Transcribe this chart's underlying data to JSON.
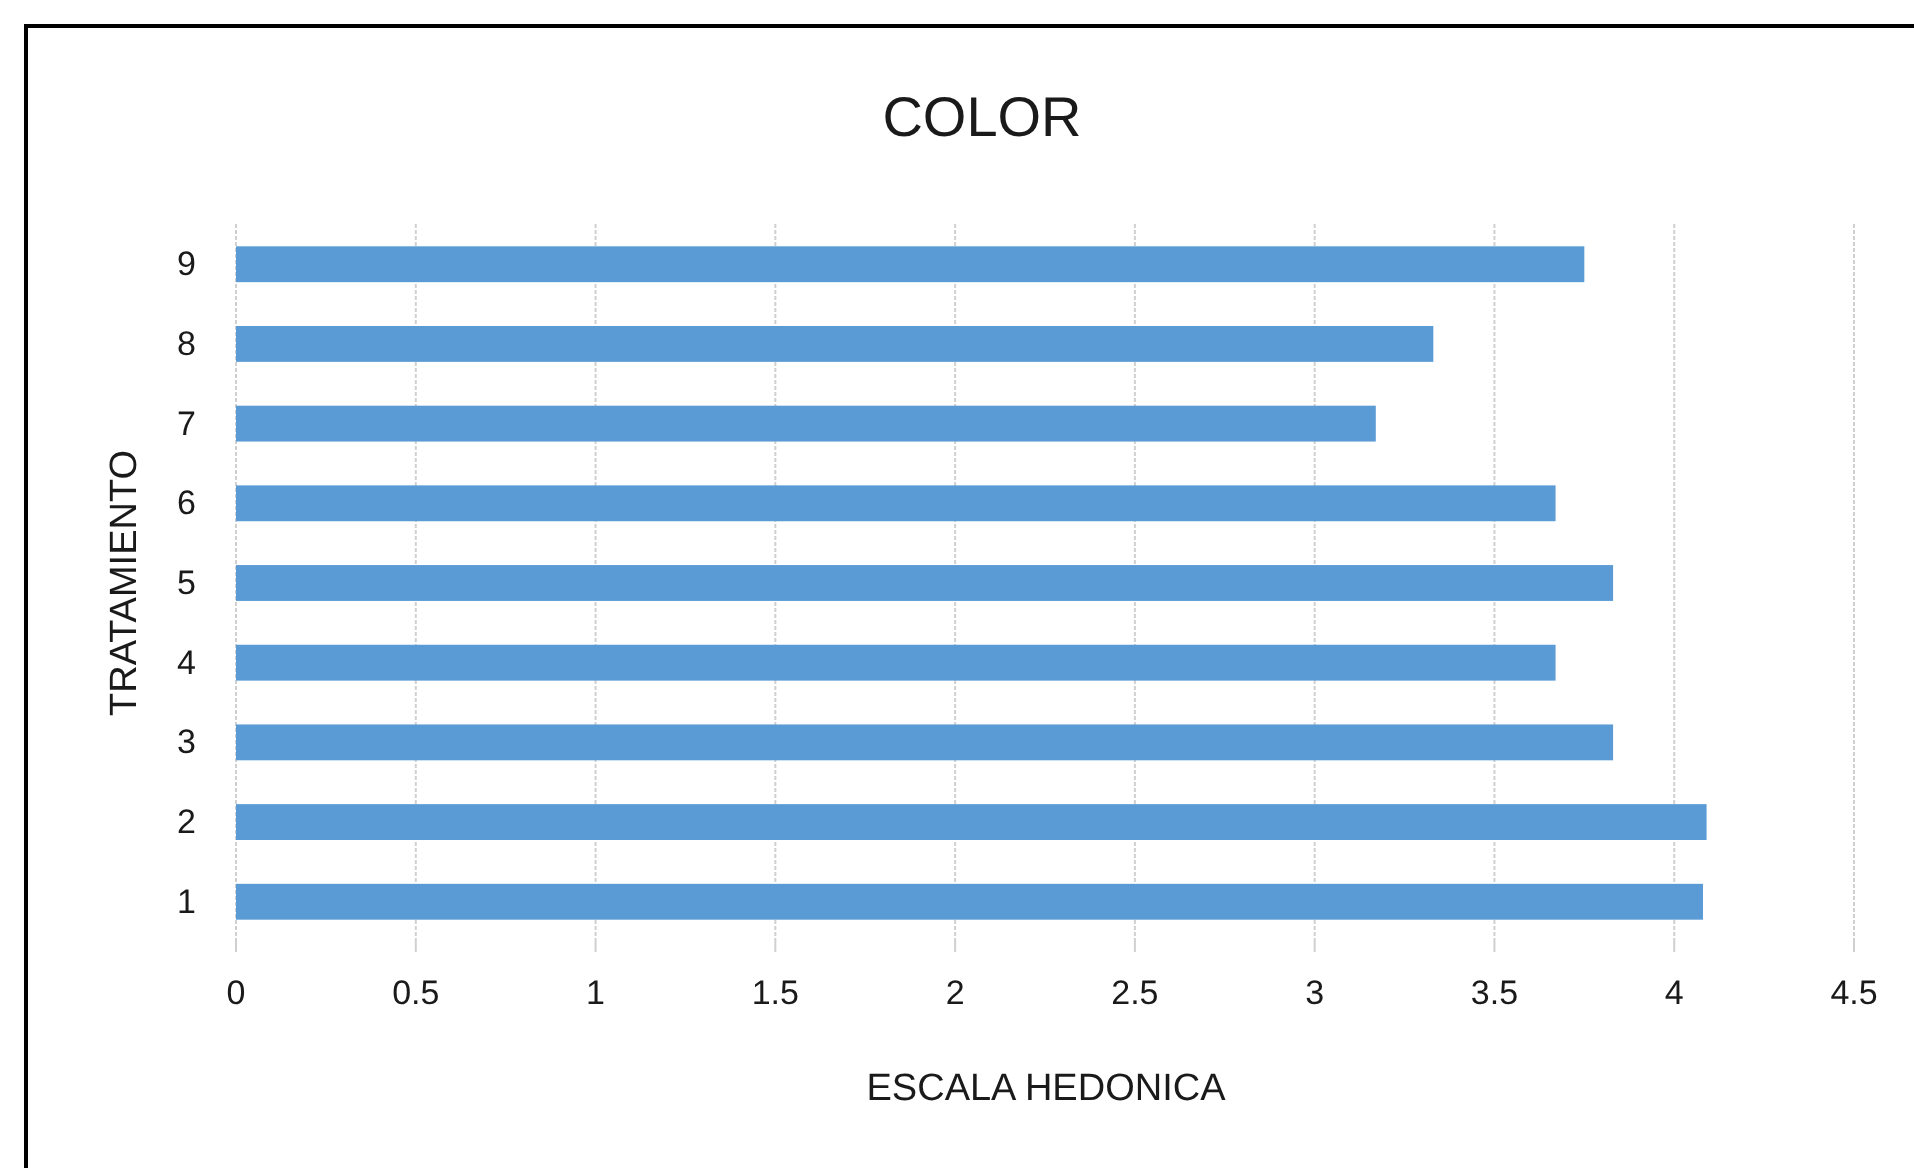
{
  "chart_data": {
    "type": "bar",
    "orientation": "horizontal",
    "title": "COLOR",
    "xlabel": "ESCALA HEDONICA",
    "ylabel": "TRATAMIENTO",
    "categories": [
      "9",
      "8",
      "7",
      "6",
      "5",
      "4",
      "3",
      "2",
      "1"
    ],
    "values": [
      3.75,
      3.33,
      3.17,
      3.67,
      3.83,
      3.67,
      3.83,
      4.09,
      4.08
    ],
    "color": "#5b9bd5",
    "xlim": [
      0,
      4.5
    ],
    "xticks": [
      0,
      0.5,
      1,
      1.5,
      2,
      2.5,
      3,
      3.5,
      4,
      4.5
    ],
    "grid": "x"
  }
}
